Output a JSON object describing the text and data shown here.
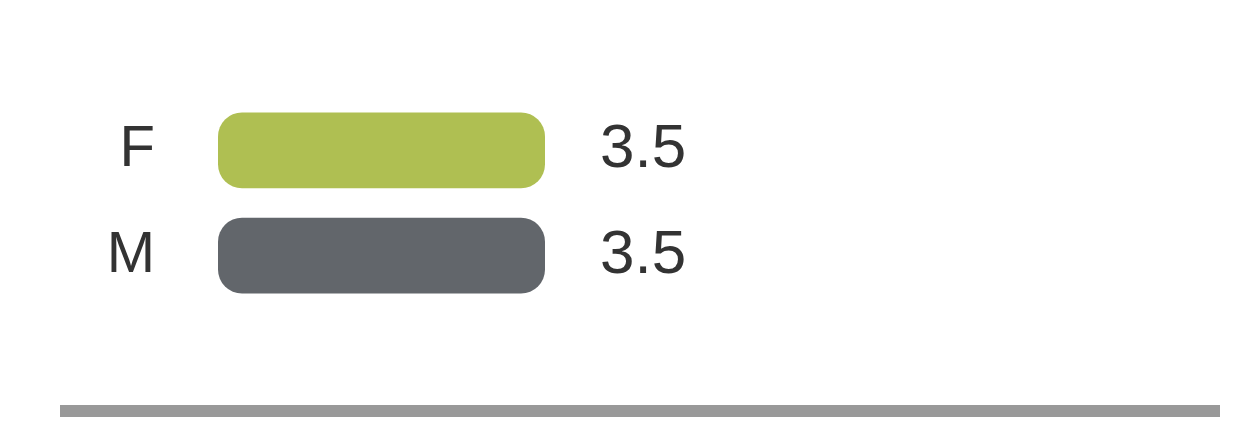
{
  "chart_data": {
    "type": "bar",
    "orientation": "horizontal",
    "categories": [
      "F",
      "M"
    ],
    "values": [
      3.5,
      3.5
    ],
    "colors": [
      "#afbf52",
      "#62666b"
    ],
    "data_labels": true
  }
}
